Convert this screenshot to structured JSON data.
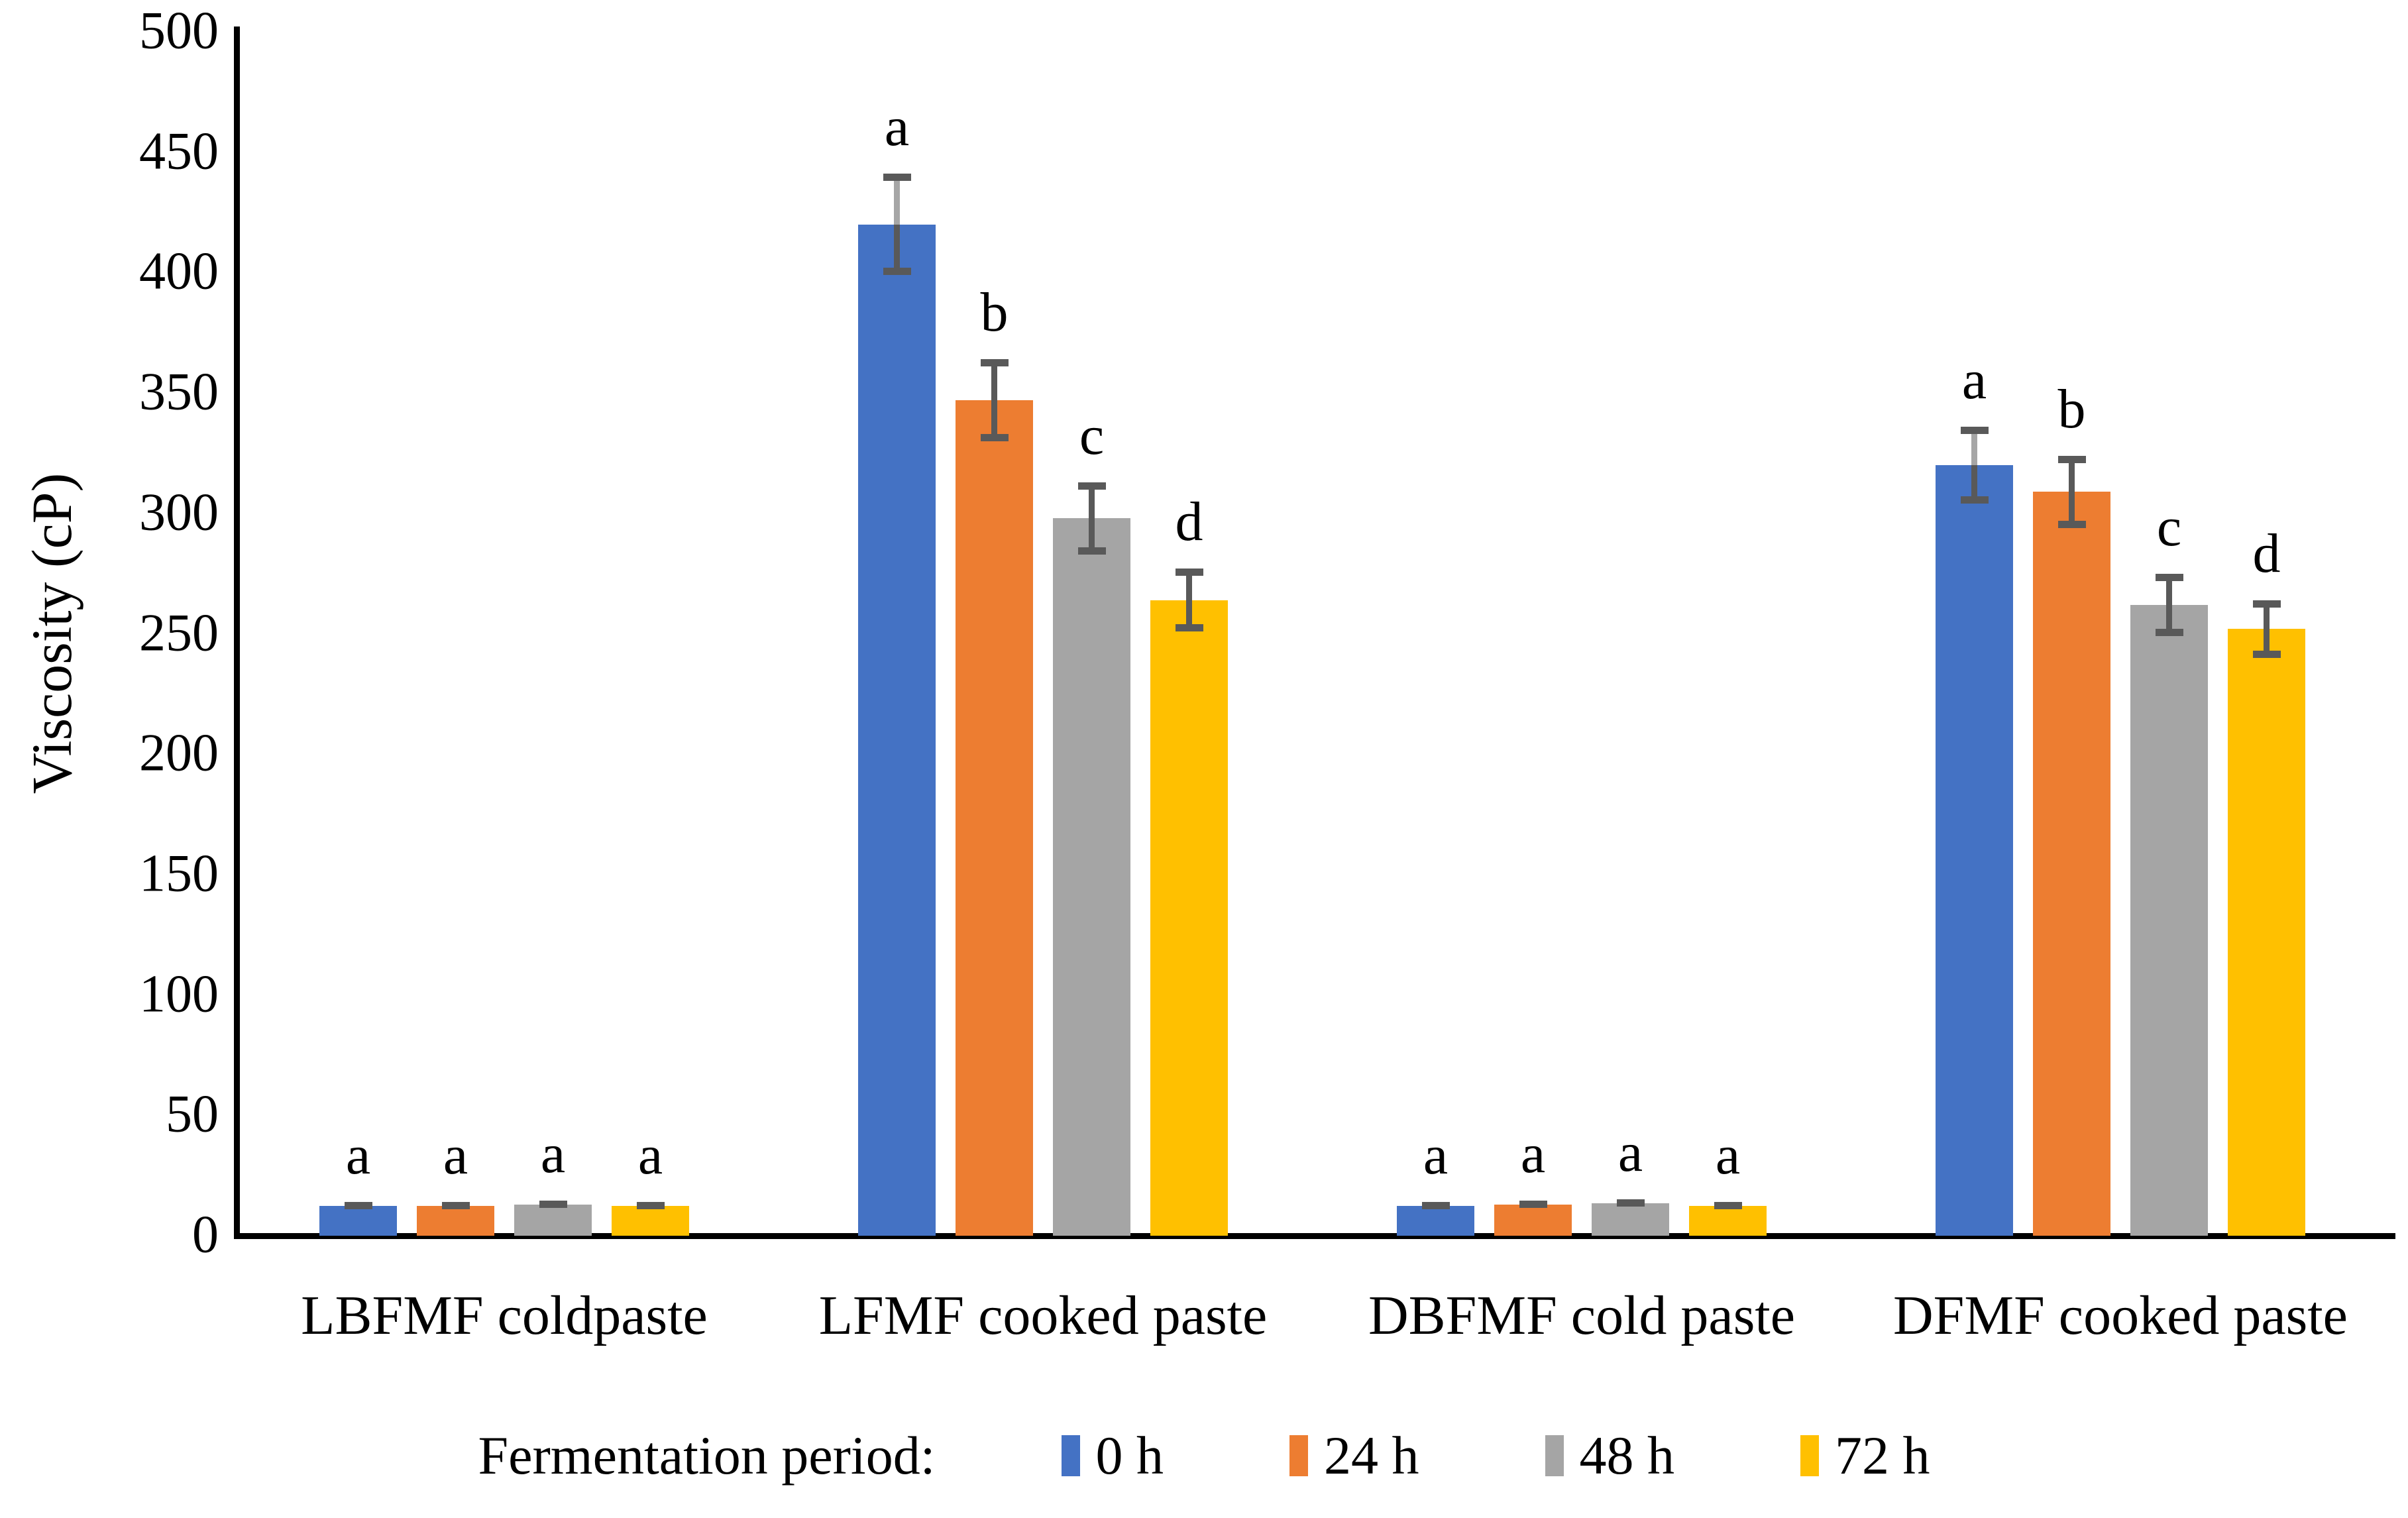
{
  "figure": {
    "background": "#ffffff",
    "text_color": "#000000"
  },
  "chart_data": {
    "type": "bar",
    "title": "",
    "ylabel": "Viscosity (cP)",
    "xlabel": "",
    "ylim": [
      0,
      500
    ],
    "yticks": [
      0,
      50,
      100,
      150,
      200,
      250,
      300,
      350,
      400,
      450,
      500
    ],
    "grid": false,
    "legend_position": "bottom",
    "legend_title": "Fermentation period:",
    "axis_color": "#000000",
    "error_bar_color": "#595959",
    "error_bar_upper_color": "#A6A6A6",
    "categories": [
      "LBFMF coldpaste",
      "LFMF cooked paste",
      "DBFMF cold paste",
      "DFMF cooked paste"
    ],
    "series": [
      {
        "name": "0 h",
        "color": "#4472C4",
        "values": [
          12.5,
          420,
          12.5,
          320
        ],
        "errors": [
          1.5,
          21,
          1.5,
          16
        ],
        "letters": [
          "a",
          "a",
          "a",
          "a"
        ]
      },
      {
        "name": "24 h",
        "color": "#ED7D31",
        "values": [
          12.5,
          347,
          13,
          309
        ],
        "errors": [
          1.5,
          17,
          1.5,
          15
        ],
        "letters": [
          "a",
          "b",
          "a",
          "b"
        ]
      },
      {
        "name": "48 h",
        "color": "#A5A5A5",
        "values": [
          13,
          298,
          13.5,
          262
        ],
        "errors": [
          1.5,
          15,
          1.5,
          13
        ],
        "letters": [
          "a",
          "c",
          "a",
          "c"
        ]
      },
      {
        "name": "72 h",
        "color": "#FFC000",
        "values": [
          12.5,
          264,
          12.5,
          252
        ],
        "errors": [
          1.5,
          13,
          1.5,
          12
        ],
        "letters": [
          "a",
          "d",
          "a",
          "d"
        ]
      }
    ]
  }
}
